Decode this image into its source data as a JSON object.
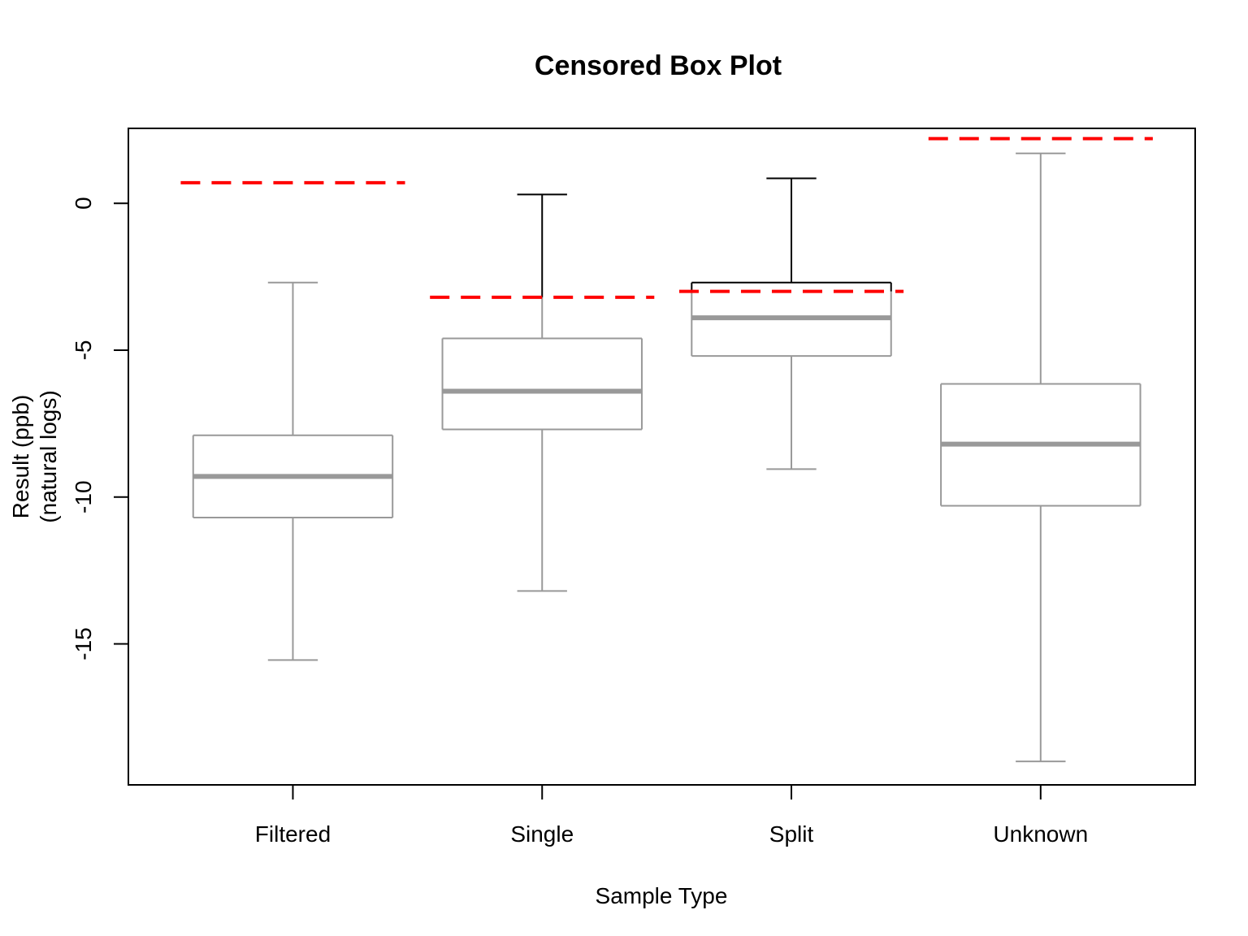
{
  "chart_data": {
    "type": "box",
    "title": "Censored Box Plot",
    "xlabel": "Sample Type",
    "ylabel_lines": [
      "Result (ppb)",
      "(natural logs)"
    ],
    "categories": [
      "Filtered",
      "Single",
      "Split",
      "Unknown"
    ],
    "yticks": [
      0,
      -5,
      -10,
      -15
    ],
    "ylim": [
      -19.8,
      2.55
    ],
    "boxes": [
      {
        "name": "Filtered",
        "whisker_low": -15.55,
        "q1": -10.7,
        "median": -9.3,
        "q3": -7.9,
        "whisker_high": -2.7,
        "detection_limit": 0.7,
        "censored_above": null
      },
      {
        "name": "Single",
        "whisker_low": -13.2,
        "q1": -7.7,
        "median": -6.4,
        "q3": -4.6,
        "whisker_high": 0.3,
        "detection_limit": -3.2,
        "censored_above": -3.2
      },
      {
        "name": "Split",
        "whisker_low": -9.05,
        "q1": -5.2,
        "median": -3.9,
        "q3": -2.7,
        "whisker_high": 0.85,
        "detection_limit": -3.0,
        "censored_above": -3.0
      },
      {
        "name": "Unknown",
        "whisker_low": -19.0,
        "q1": -10.3,
        "median": -8.2,
        "q3": -6.15,
        "whisker_high": 1.7,
        "detection_limit": 2.2,
        "censored_above": null
      }
    ],
    "colors": {
      "box": "#999999",
      "median": "#999999",
      "censored": "#000000",
      "detection_limit": "#ff0000"
    }
  }
}
